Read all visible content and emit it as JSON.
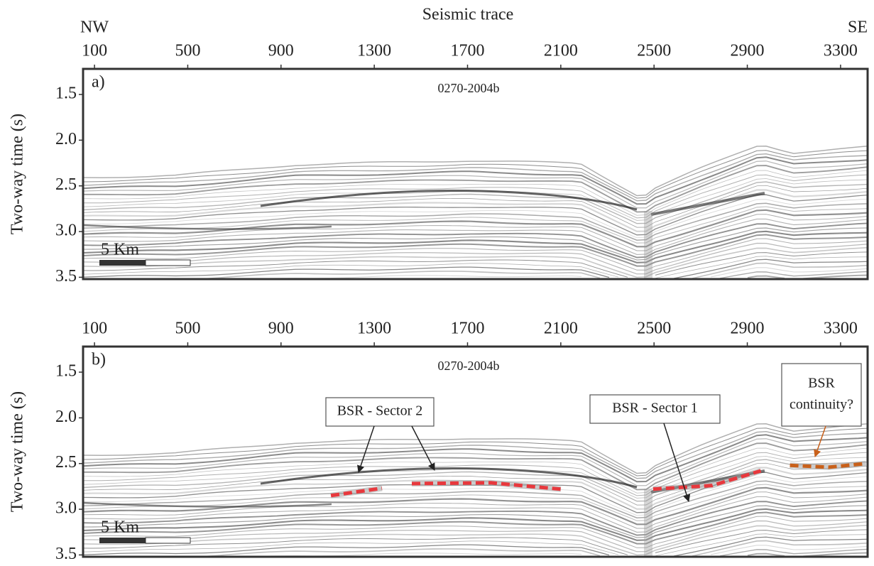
{
  "chart_data": [
    {
      "type": "line",
      "label": "a)",
      "title": "0270-2004b",
      "xlabel": "Seismic trace",
      "direction_labels": [
        "NW",
        "SE"
      ],
      "ylabel": "Two-way time (s)",
      "scale_bar": "5 Km",
      "xlim": [
        51,
        3416
      ],
      "xticks": [
        100,
        500,
        900,
        1300,
        1700,
        2100,
        2500,
        2900,
        3300
      ],
      "ylim": [
        3.52,
        1.22
      ],
      "yticks": [
        1.5,
        {
          "value": 2,
          "label": "2.0"
        },
        2.5,
        {
          "value": 3,
          "label": "3.0"
        },
        3.5
      ]
    },
    {
      "type": "line",
      "label": "b)",
      "title": "0270-2004b",
      "ylabel": "Two-way time (s)",
      "scale_bar": "5 Km",
      "xlim": [
        51,
        3416
      ],
      "xticks": [
        100,
        500,
        900,
        1300,
        1700,
        2100,
        2500,
        2900,
        3300
      ],
      "ylim": [
        3.52,
        1.22
      ],
      "yticks": [
        1.5,
        {
          "value": 2,
          "label": "2.0"
        },
        2.5,
        {
          "value": 3,
          "label": "3.0"
        },
        3.5
      ],
      "series": [
        {
          "color": "#e8383d",
          "x": [
            1114,
            1333
          ],
          "values": [
            2.85,
            2.77
          ]
        },
        {
          "color": "#e8383d",
          "x": [
            1461,
            1800,
            2100
          ],
          "values": [
            2.72,
            2.71,
            2.78
          ]
        },
        {
          "color": "#e8383d",
          "x": [
            2496,
            2750,
            2958
          ],
          "values": [
            2.78,
            2.74,
            2.58
          ]
        },
        {
          "color": "#c8601a",
          "x": [
            3083,
            3250,
            3409
          ],
          "values": [
            2.52,
            2.54,
            2.5
          ]
        }
      ],
      "annotations": [
        [
          "BSR - Sector 2"
        ],
        [
          "BSR - Sector 1"
        ],
        [
          "BSR",
          "continuity?"
        ]
      ]
    }
  ]
}
